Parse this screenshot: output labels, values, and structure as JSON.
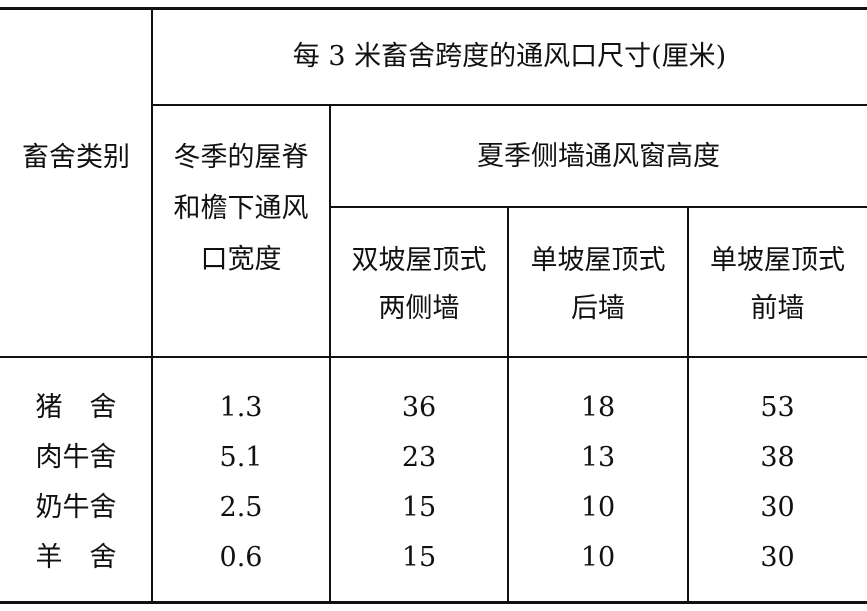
{
  "table": {
    "top_header": "每 3 米畜舍跨度的通风口尺寸(厘米)",
    "row_header": "畜舍类别",
    "winter_header": [
      "冬季的屋脊",
      "和檐下通风",
      "口宽度"
    ],
    "summer_header": "夏季侧墙通风窗高度",
    "summer_subheaders": [
      [
        "双坡屋顶式",
        "两侧墙"
      ],
      [
        "单坡屋顶式",
        "后墙"
      ],
      [
        "单坡屋顶式",
        "前墙"
      ]
    ],
    "rows": [
      {
        "name": "猪　舍",
        "values": [
          "1.3",
          "36",
          "18",
          "53"
        ]
      },
      {
        "name": "肉牛舍",
        "values": [
          "5.1",
          "23",
          "13",
          "38"
        ]
      },
      {
        "name": "奶牛舍",
        "values": [
          "2.5",
          "15",
          "10",
          "30"
        ]
      },
      {
        "name": "羊　舍",
        "values": [
          "0.6",
          "15",
          "10",
          "30"
        ]
      }
    ]
  }
}
